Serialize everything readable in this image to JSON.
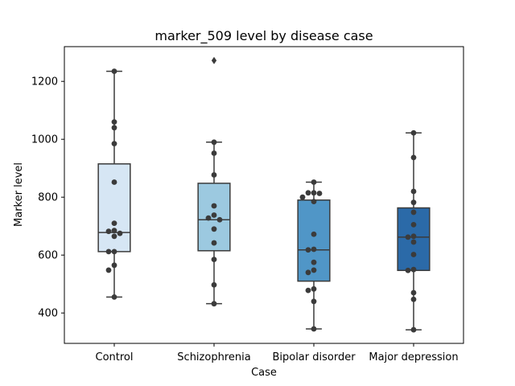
{
  "chart_data": {
    "type": "box",
    "title": "marker_509 level by disease case",
    "xlabel": "Case",
    "ylabel": "Marker level",
    "ylim": [
      295,
      1320
    ],
    "yticks": [
      400,
      600,
      800,
      1000,
      1200
    ],
    "categories": [
      "Control",
      "Schizophrenia",
      "Bipolar disorder",
      "Major depression"
    ],
    "colors": [
      "#d6e6f4",
      "#9cc9e0",
      "#5096c7",
      "#2b6aa8"
    ],
    "grid": false,
    "legend": "none",
    "boxes": [
      {
        "category": "Control",
        "whisker_low": 455,
        "q1": 612,
        "median": 678,
        "q3": 915,
        "whisker_high": 1235,
        "outliers": []
      },
      {
        "category": "Schizophrenia",
        "whisker_low": 432,
        "q1": 615,
        "median": 722,
        "q3": 848,
        "whisker_high": 990,
        "outliers": [
          1272
        ]
      },
      {
        "category": "Bipolar disorder",
        "whisker_low": 345,
        "q1": 510,
        "median": 618,
        "q3": 790,
        "whisker_high": 852,
        "outliers": []
      },
      {
        "category": "Major depression",
        "whisker_low": 342,
        "q1": 547,
        "median": 662,
        "q3": 763,
        "whisker_high": 1022,
        "outliers": []
      }
    ],
    "points": [
      {
        "category": "Control",
        "values": [
          1235,
          1060,
          1040,
          985,
          852,
          710,
          685,
          682,
          675,
          665,
          612,
          612,
          565,
          548,
          455
        ]
      },
      {
        "category": "Schizophrenia",
        "values": [
          990,
          952,
          877,
          770,
          738,
          728,
          722,
          690,
          642,
          585,
          497,
          432
        ]
      },
      {
        "category": "Bipolar disorder",
        "values": [
          852,
          815,
          815,
          813,
          800,
          785,
          672,
          620,
          618,
          575,
          548,
          540,
          483,
          478,
          440,
          345
        ]
      },
      {
        "category": "Major depression",
        "values": [
          1022,
          937,
          820,
          782,
          748,
          705,
          665,
          662,
          645,
          602,
          550,
          547,
          470,
          447,
          342
        ]
      }
    ]
  }
}
